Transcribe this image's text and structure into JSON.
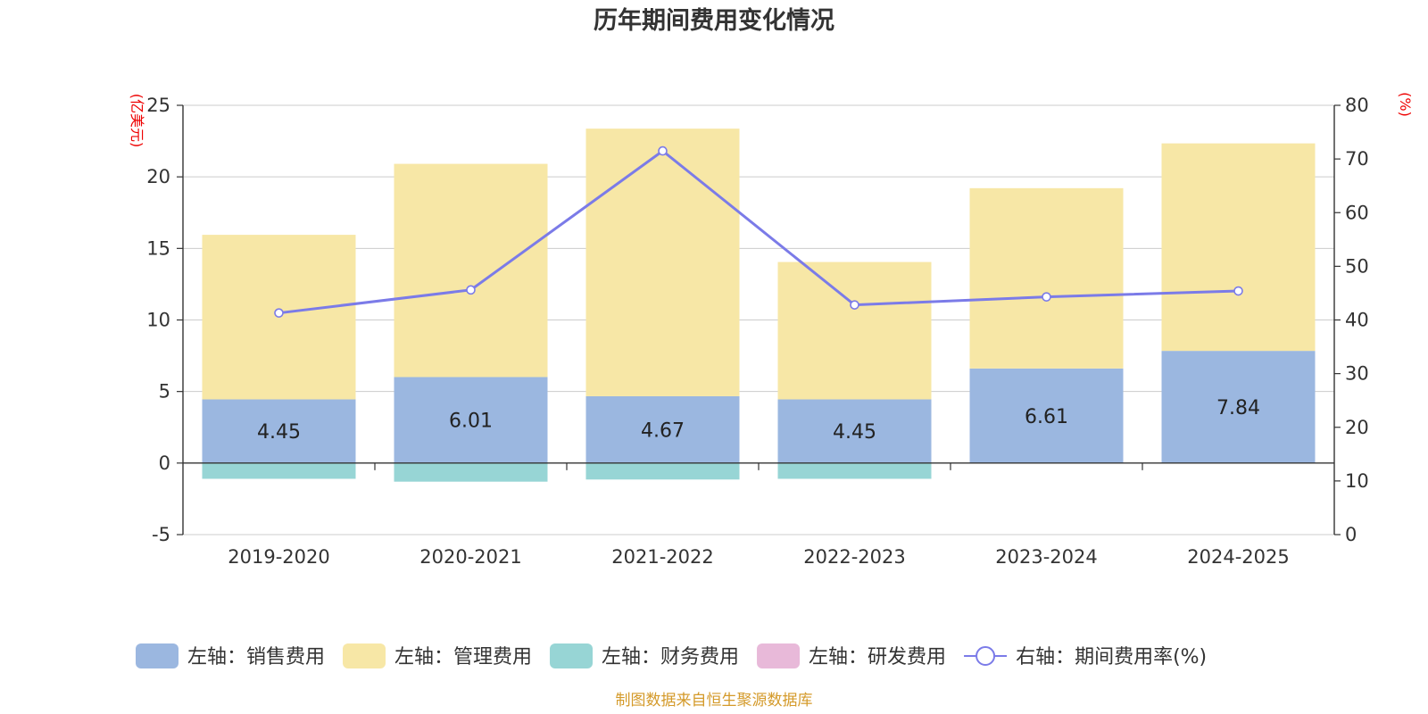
{
  "chart_data": {
    "type": "bar",
    "title": "历年期间费用变化情况",
    "categories": [
      "2019-2020",
      "2020-2021",
      "2021-2022",
      "2022-2023",
      "2023-2024",
      "2024-2025"
    ],
    "left_axis": {
      "unit": "(亿美元)",
      "ylim": [
        -5,
        25
      ],
      "ticks": [
        -5,
        0,
        5,
        10,
        15,
        20,
        25
      ]
    },
    "right_axis": {
      "unit": "(%)",
      "ylim": [
        0,
        80
      ],
      "ticks": [
        0,
        10,
        20,
        30,
        40,
        50,
        60,
        70,
        80
      ]
    },
    "series": [
      {
        "name": "左轴：销售费用",
        "axis": "left",
        "type": "bar",
        "stack": "pos",
        "color": "#9bb7e0",
        "values": [
          4.45,
          6.01,
          4.67,
          4.45,
          6.61,
          7.84
        ],
        "show_labels": true
      },
      {
        "name": "左轴：管理费用",
        "axis": "left",
        "type": "bar",
        "stack": "pos",
        "color": "#f7e7a6",
        "values": [
          11.5,
          14.9,
          18.7,
          9.6,
          12.6,
          14.5
        ],
        "show_labels": false
      },
      {
        "name": "左轴：财务费用",
        "axis": "left",
        "type": "bar",
        "stack": "neg",
        "color": "#97d5d5",
        "values": [
          -1.1,
          -1.3,
          -1.15,
          -1.1,
          0,
          0
        ],
        "show_labels": false
      },
      {
        "name": "左轴：研发费用",
        "axis": "left",
        "type": "bar",
        "stack": "pos",
        "color": "#e8b9d9",
        "values": [
          0,
          0,
          0,
          0,
          0,
          0
        ],
        "show_labels": false
      },
      {
        "name": "右轴：期间费用率(%)",
        "axis": "right",
        "type": "line",
        "color": "#7b7be8",
        "values": [
          41.3,
          45.6,
          71.5,
          42.8,
          44.3,
          45.4
        ],
        "show_labels": false
      }
    ],
    "grid": true,
    "legend_position": "bottom-center"
  },
  "footer": {
    "source": "制图数据来自恒生聚源数据库"
  }
}
